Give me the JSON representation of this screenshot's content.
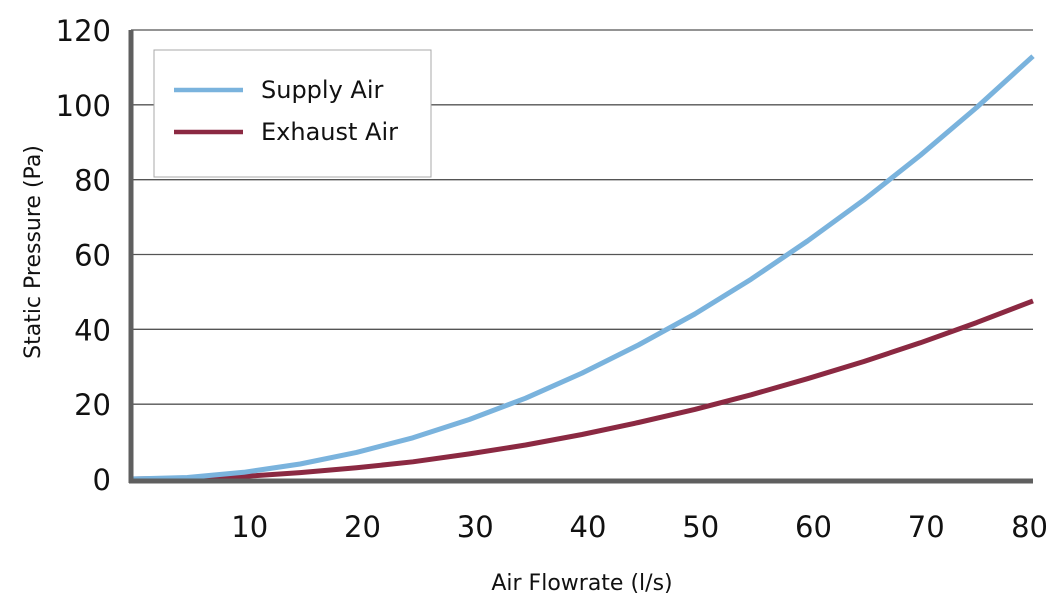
{
  "chart_data": {
    "type": "line",
    "title": "",
    "xlabel": "Air Flowrate (l/s)",
    "ylabel": "Static Pressure (Pa)",
    "xlim": [
      0,
      80
    ],
    "ylim": [
      0,
      120
    ],
    "x_ticks": [
      10,
      20,
      30,
      40,
      50,
      60,
      70,
      80
    ],
    "y_ticks": [
      0,
      20,
      40,
      60,
      80,
      100,
      120
    ],
    "grid": {
      "horizontal": true,
      "vertical": false
    },
    "legend_position": "upper-left",
    "x": [
      0,
      5,
      10,
      15,
      20,
      25,
      30,
      35,
      40,
      45,
      50,
      55,
      60,
      65,
      70,
      75,
      80
    ],
    "series": [
      {
        "name": "Supply Air",
        "color": "#7ab3dd",
        "values": [
          0,
          0.4,
          1.8,
          4.0,
          7.1,
          11.0,
          15.9,
          21.6,
          28.3,
          35.8,
          44.1,
          53.4,
          63.6,
          74.6,
          86.5,
          99.3,
          113.0
        ]
      },
      {
        "name": "Exhaust Air",
        "color": "#8b2942",
        "values": [
          0,
          0.2,
          0.7,
          1.7,
          3.0,
          4.6,
          6.7,
          9.1,
          11.9,
          15.1,
          18.6,
          22.5,
          26.8,
          31.4,
          36.4,
          41.8,
          47.6
        ]
      }
    ]
  },
  "legend": {
    "items": [
      {
        "label": "Supply Air",
        "color": "#7ab3dd"
      },
      {
        "label": "Exhaust Air",
        "color": "#8b2942"
      }
    ]
  },
  "axes": {
    "xlabel": "Air Flowrate (l/s)",
    "ylabel": "Static Pressure (Pa)",
    "axis_color": "#5f5f5f",
    "grid_color": "#555555"
  }
}
